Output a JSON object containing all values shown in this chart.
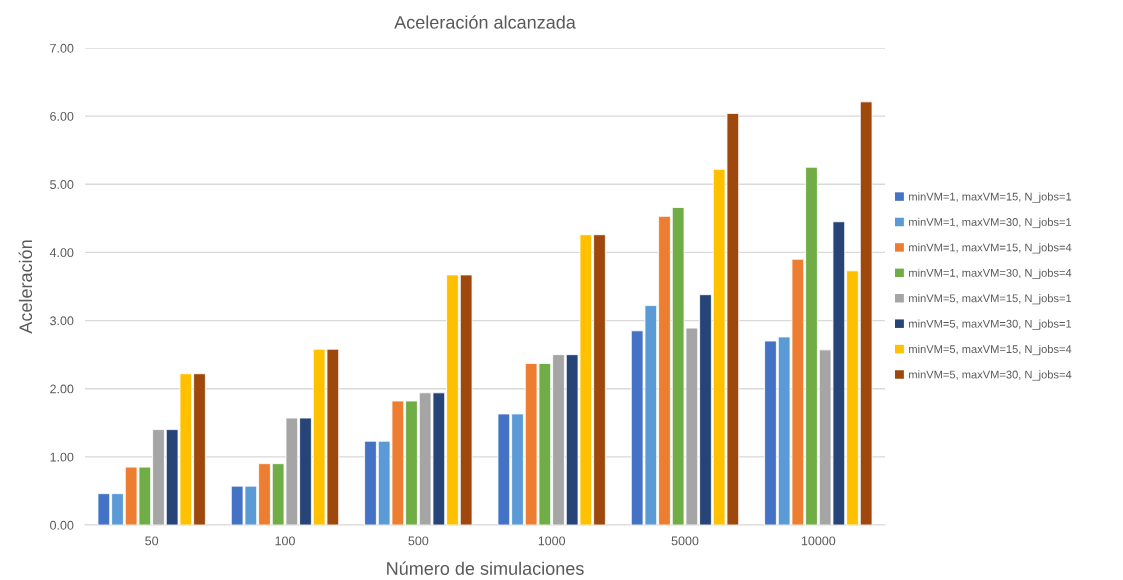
{
  "chart_data": {
    "type": "bar",
    "title": "Aceleración alcanzada",
    "xlabel": "Número de simulaciones",
    "ylabel": "Aceleración",
    "categories": [
      "50",
      "100",
      "500",
      "1000",
      "5000",
      "10000"
    ],
    "series": [
      {
        "name": "minVM=1, maxVM=15, N_jobs=1",
        "color": "#4472c4",
        "values": [
          0.46,
          0.57,
          1.23,
          1.63,
          2.85,
          2.7
        ]
      },
      {
        "name": "minVM=1, maxVM=30, N_jobs=1",
        "color": "#5b9bd5",
        "values": [
          0.46,
          0.57,
          1.23,
          1.63,
          3.22,
          2.76
        ]
      },
      {
        "name": "minVM=1, maxVM=15, N_jobs=4",
        "color": "#ed7d31",
        "values": [
          0.85,
          0.9,
          1.82,
          2.37,
          4.53,
          3.9
        ]
      },
      {
        "name": "minVM=1, maxVM=30, N_jobs=4",
        "color": "#70ad47",
        "values": [
          0.85,
          0.9,
          1.82,
          2.37,
          4.66,
          5.25
        ]
      },
      {
        "name": "minVM=5, maxVM=15, N_jobs=1",
        "color": "#a5a5a5",
        "values": [
          1.4,
          1.57,
          1.94,
          2.5,
          2.89,
          2.57
        ]
      },
      {
        "name": "minVM=5, maxVM=30, N_jobs=1",
        "color": "#264478",
        "values": [
          1.4,
          1.57,
          1.94,
          2.5,
          3.38,
          4.45
        ]
      },
      {
        "name": "minVM=5, maxVM=15, N_jobs=4",
        "color": "#ffc000",
        "values": [
          2.22,
          2.58,
          3.67,
          4.26,
          5.22,
          3.73
        ]
      },
      {
        "name": "minVM=5, maxVM=30, N_jobs=4",
        "color": "#9e480e",
        "values": [
          2.22,
          2.58,
          3.67,
          4.26,
          6.04,
          6.21
        ]
      }
    ],
    "ylim": [
      0,
      7
    ],
    "yticks": [
      {
        "value": 0,
        "label": "0.00"
      },
      {
        "value": 1,
        "label": "1.00"
      },
      {
        "value": 2,
        "label": "2.00"
      },
      {
        "value": 3,
        "label": "3.00"
      },
      {
        "value": 4,
        "label": "4.00"
      },
      {
        "value": 5,
        "label": "5.00"
      },
      {
        "value": 6,
        "label": "6.00"
      },
      {
        "value": 7,
        "label": "7.00"
      }
    ],
    "grid": "y",
    "legend": "right"
  }
}
